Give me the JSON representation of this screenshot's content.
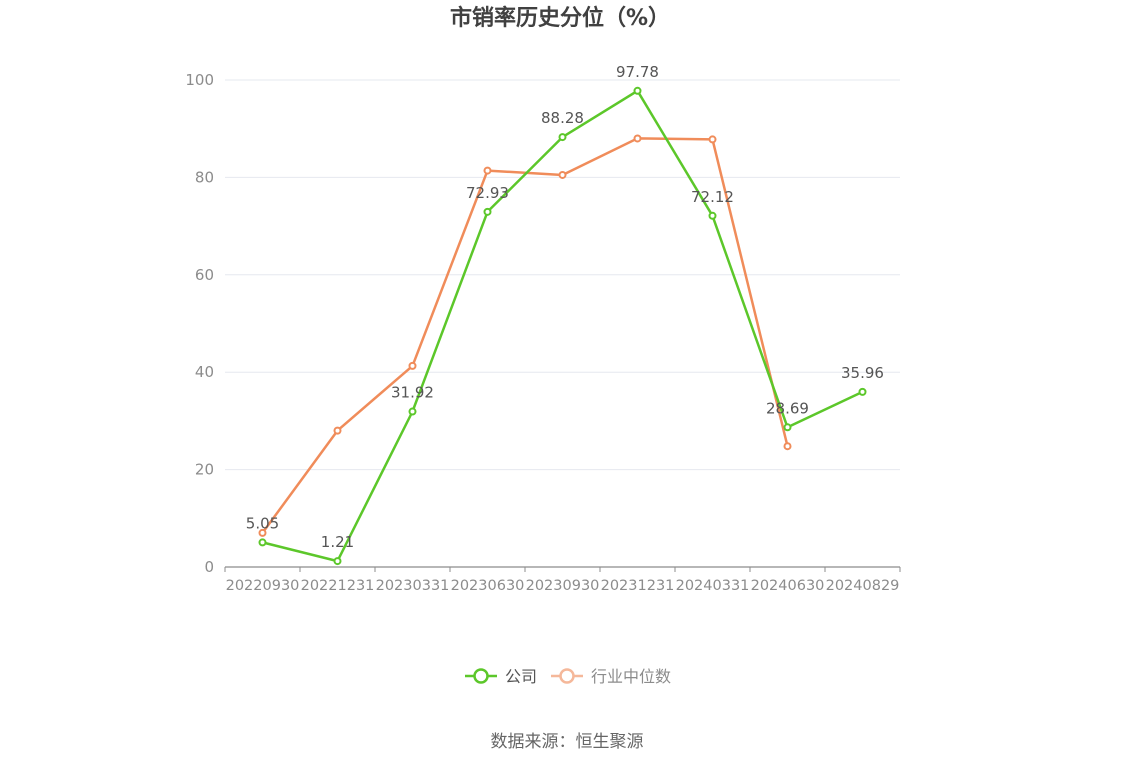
{
  "chart_data": {
    "type": "line",
    "title": "市销率历史分位（%）",
    "categories": [
      "20220930",
      "20221231",
      "20230331",
      "20230630",
      "20230930",
      "20231231",
      "20240331",
      "20240630",
      "20240829"
    ],
    "yticks": [
      0,
      20,
      40,
      60,
      80,
      100
    ],
    "ylim": [
      0,
      100
    ],
    "grid": true,
    "legend_position": "bottom",
    "series": [
      {
        "name": "公司",
        "color": "#5cc72a",
        "values": [
          5.05,
          1.21,
          31.92,
          72.93,
          88.28,
          97.78,
          72.12,
          28.69,
          35.96
        ],
        "labels": [
          "5.05",
          "1.21",
          "31.92",
          "72.93",
          "88.28",
          "97.78",
          "72.12",
          "28.69",
          "35.96"
        ]
      },
      {
        "name": "行业中位数",
        "color": "#f08c5a",
        "legend_color": "#f5b89a",
        "values": [
          7.0,
          28.0,
          41.3,
          81.4,
          80.5,
          88.0,
          87.8,
          24.8,
          null
        ]
      }
    ]
  },
  "footer": {
    "source": "数据来源：恒生聚源"
  }
}
